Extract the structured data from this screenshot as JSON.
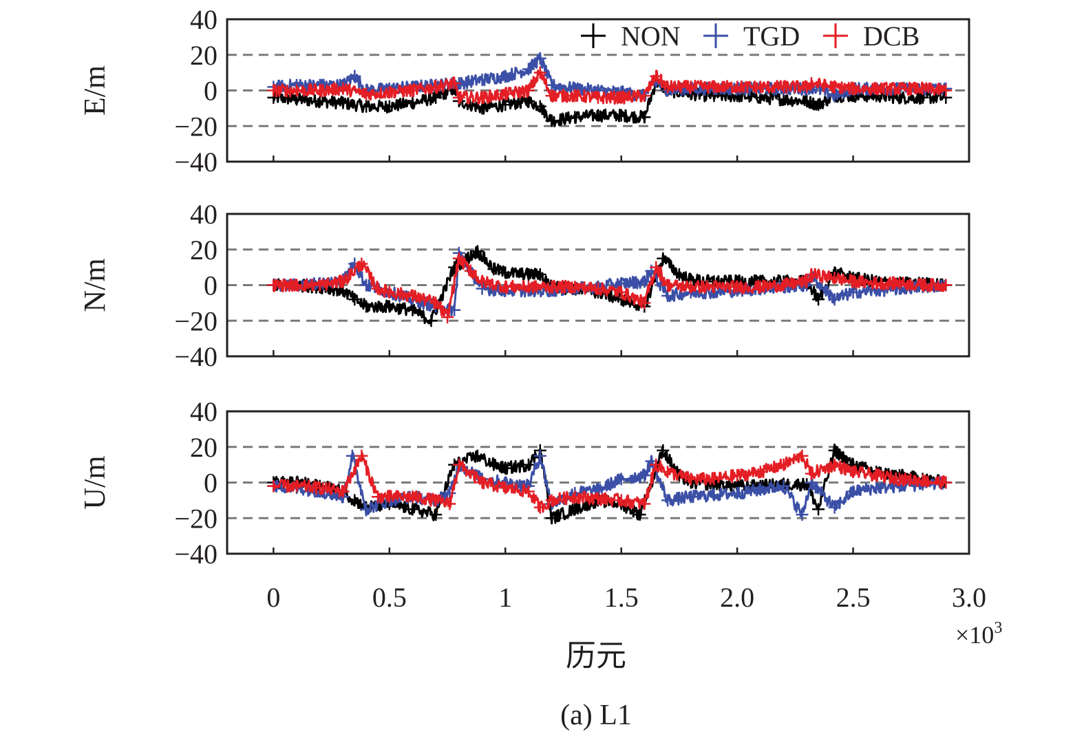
{
  "chart_data": {
    "type": "scatter",
    "caption": "(a) L1",
    "xlabel": "历元",
    "x_multiplier": "×10",
    "x_multiplier_exp": "3",
    "x_range": [
      -0.2,
      3.0
    ],
    "x_ticks": [
      {
        "value": 0,
        "label": "0"
      },
      {
        "value": 0.5,
        "label": "0.5"
      },
      {
        "value": 1,
        "label": "1"
      },
      {
        "value": 1.5,
        "label": "1.5"
      },
      {
        "value": 2.0,
        "label": "2.0"
      },
      {
        "value": 2.5,
        "label": "2.5"
      },
      {
        "value": 3.0,
        "label": "3.0"
      }
    ],
    "y_ticks": [
      {
        "value": 40,
        "label": "40"
      },
      {
        "value": 20,
        "label": "20"
      },
      {
        "value": 0,
        "label": "0"
      },
      {
        "value": -20,
        "label": "−20"
      },
      {
        "value": -40,
        "label": "−40"
      }
    ],
    "y_range": [
      -40,
      40
    ],
    "grid": "dashed at y = -20, 0, 20",
    "legend": {
      "placement": "top-right of first panel",
      "marker": "+"
    },
    "series_styles": [
      {
        "name": "NON",
        "color": "#000000"
      },
      {
        "name": "TGD",
        "color": "#3b4fa6"
      },
      {
        "name": "DCB",
        "color": "#e31e25"
      }
    ],
    "panels": [
      {
        "ylabel": "E/m",
        "series": [
          {
            "name": "NON",
            "x": [
              0,
              0.1,
              0.2,
              0.3,
              0.4,
              0.5,
              0.6,
              0.7,
              0.78,
              0.8,
              0.9,
              1.0,
              1.1,
              1.15,
              1.2,
              1.3,
              1.4,
              1.5,
              1.6,
              1.65,
              1.7,
              1.8,
              1.9,
              2.0,
              2.1,
              2.2,
              2.3,
              2.35,
              2.42,
              2.5,
              2.6,
              2.7,
              2.8,
              2.9
            ],
            "y": [
              -4,
              -5,
              -6,
              -7,
              -9,
              -9,
              -7,
              -4,
              1,
              -6,
              -10,
              -8,
              -6,
              -9,
              -17,
              -15,
              -14,
              -14,
              -15,
              5,
              0,
              -2,
              -3,
              -3,
              -4,
              -5,
              -6,
              -8,
              -3,
              -3,
              -3,
              -4,
              -4,
              -4
            ]
          },
          {
            "name": "TGD",
            "x": [
              0,
              0.1,
              0.2,
              0.3,
              0.35,
              0.4,
              0.5,
              0.6,
              0.7,
              0.78,
              0.8,
              0.9,
              1.0,
              1.1,
              1.15,
              1.2,
              1.3,
              1.4,
              1.5,
              1.6,
              1.65,
              1.7,
              1.8,
              1.9,
              2.0,
              2.1,
              2.2,
              2.3,
              2.32,
              2.42,
              2.5,
              2.6,
              2.7,
              2.8,
              2.9
            ],
            "y": [
              2,
              3,
              3,
              3,
              8,
              0,
              1,
              2,
              3,
              4,
              4,
              6,
              8,
              12,
              18,
              3,
              1,
              0,
              -1,
              -3,
              5,
              0,
              1,
              1,
              1,
              1,
              1,
              1,
              2,
              -3,
              1,
              1,
              1,
              1,
              1
            ]
          },
          {
            "name": "DCB",
            "x": [
              0,
              0.1,
              0.2,
              0.3,
              0.4,
              0.5,
              0.6,
              0.7,
              0.78,
              0.8,
              0.9,
              1.0,
              1.1,
              1.15,
              1.2,
              1.3,
              1.4,
              1.5,
              1.6,
              1.65,
              1.7,
              1.8,
              1.9,
              2.0,
              2.1,
              2.2,
              2.3,
              2.32,
              2.42,
              2.5,
              2.6,
              2.7,
              2.8,
              2.9
            ],
            "y": [
              0,
              0,
              0,
              1,
              -2,
              -1,
              0,
              2,
              4,
              -4,
              -4,
              -2,
              0,
              10,
              -3,
              -3,
              -4,
              -4,
              -3,
              8,
              2,
              2,
              2,
              2,
              2,
              2,
              2,
              4,
              2,
              1,
              1,
              1,
              1,
              0
            ]
          }
        ]
      },
      {
        "ylabel": "N/m",
        "series": [
          {
            "name": "NON",
            "x": [
              0,
              0.1,
              0.2,
              0.3,
              0.35,
              0.4,
              0.5,
              0.6,
              0.68,
              0.78,
              0.88,
              0.95,
              1.0,
              1.1,
              1.15,
              1.2,
              1.3,
              1.4,
              1.5,
              1.6,
              1.68,
              1.75,
              1.8,
              1.9,
              2.0,
              2.1,
              2.2,
              2.3,
              2.35,
              2.42,
              2.5,
              2.6,
              2.7,
              2.8,
              2.9
            ],
            "y": [
              0,
              0,
              -1,
              -3,
              -8,
              -12,
              -12,
              -14,
              -20,
              10,
              19,
              9,
              7,
              6,
              6,
              -1,
              -2,
              -4,
              -8,
              -12,
              15,
              6,
              3,
              2,
              2,
              2,
              2,
              2,
              -8,
              7,
              4,
              2,
              1,
              1,
              0
            ]
          },
          {
            "name": "TGD",
            "x": [
              0,
              0.1,
              0.2,
              0.3,
              0.35,
              0.4,
              0.5,
              0.6,
              0.7,
              0.78,
              0.8,
              0.9,
              1.0,
              1.1,
              1.2,
              1.3,
              1.4,
              1.5,
              1.6,
              1.63,
              1.7,
              1.8,
              1.9,
              2.0,
              2.1,
              2.2,
              2.3,
              2.32,
              2.42,
              2.5,
              2.6,
              2.7,
              2.8,
              2.9
            ],
            "y": [
              0,
              0,
              1,
              3,
              12,
              0,
              -4,
              -8,
              -12,
              -14,
              18,
              -2,
              -3,
              -3,
              -3,
              -2,
              -1,
              1,
              2,
              8,
              -6,
              -4,
              -4,
              -3,
              -2,
              -1,
              0,
              5,
              -8,
              -4,
              -3,
              -2,
              -1,
              0
            ]
          },
          {
            "name": "DCB",
            "x": [
              0,
              0.1,
              0.2,
              0.3,
              0.38,
              0.45,
              0.5,
              0.6,
              0.7,
              0.75,
              0.8,
              0.85,
              0.9,
              1.0,
              1.1,
              1.2,
              1.3,
              1.4,
              1.5,
              1.6,
              1.65,
              1.7,
              1.8,
              1.9,
              2.0,
              2.1,
              2.2,
              2.3,
              2.32,
              2.42,
              2.5,
              2.6,
              2.7,
              2.8,
              2.9
            ],
            "y": [
              0,
              0,
              0,
              2,
              12,
              -2,
              -4,
              -6,
              -10,
              -18,
              15,
              8,
              2,
              -1,
              -1,
              -1,
              -1,
              -2,
              -4,
              -10,
              10,
              0,
              -1,
              -1,
              -1,
              -1,
              0,
              2,
              6,
              4,
              2,
              1,
              1,
              0,
              0
            ]
          }
        ]
      },
      {
        "ylabel": "U/m",
        "series": [
          {
            "name": "NON",
            "x": [
              0,
              0.1,
              0.2,
              0.3,
              0.35,
              0.4,
              0.5,
              0.6,
              0.7,
              0.78,
              0.88,
              0.95,
              1.0,
              1.1,
              1.15,
              1.2,
              1.3,
              1.4,
              1.5,
              1.58,
              1.68,
              1.75,
              1.8,
              1.9,
              2.0,
              2.1,
              2.2,
              2.3,
              2.35,
              2.42,
              2.5,
              2.6,
              2.7,
              2.8,
              2.9
            ],
            "y": [
              0,
              0,
              -2,
              -5,
              -10,
              -14,
              -12,
              -15,
              -18,
              10,
              15,
              10,
              8,
              10,
              18,
              -20,
              -15,
              -10,
              -12,
              -18,
              18,
              4,
              0,
              -1,
              -2,
              -2,
              -1,
              -1,
              -15,
              18,
              10,
              6,
              4,
              2,
              0
            ]
          },
          {
            "name": "TGD",
            "x": [
              0,
              0.1,
              0.2,
              0.3,
              0.34,
              0.4,
              0.5,
              0.6,
              0.7,
              0.76,
              0.8,
              0.9,
              1.0,
              1.1,
              1.15,
              1.2,
              1.3,
              1.4,
              1.5,
              1.6,
              1.63,
              1.7,
              1.8,
              1.9,
              2.0,
              2.1,
              2.2,
              2.28,
              2.32,
              2.42,
              2.5,
              2.6,
              2.7,
              2.8,
              2.9
            ],
            "y": [
              -2,
              -3,
              -5,
              -8,
              15,
              -15,
              -10,
              -8,
              -10,
              -6,
              10,
              2,
              0,
              -2,
              15,
              -12,
              -6,
              -4,
              2,
              4,
              12,
              -10,
              -8,
              -7,
              -6,
              -4,
              -2,
              -18,
              0,
              -14,
              -5,
              -3,
              -2,
              -1,
              0
            ]
          },
          {
            "name": "DCB",
            "x": [
              0,
              0.1,
              0.2,
              0.3,
              0.38,
              0.45,
              0.5,
              0.6,
              0.7,
              0.76,
              0.8,
              0.9,
              1.0,
              1.1,
              1.15,
              1.2,
              1.3,
              1.4,
              1.5,
              1.6,
              1.65,
              1.7,
              1.8,
              1.9,
              2.0,
              2.1,
              2.2,
              2.28,
              2.32,
              2.42,
              2.5,
              2.6,
              2.7,
              2.8,
              2.9
            ],
            "y": [
              -2,
              -2,
              -3,
              -5,
              15,
              -8,
              -8,
              -8,
              -10,
              -12,
              10,
              0,
              -3,
              -5,
              -14,
              -10,
              -8,
              -9,
              -10,
              -12,
              10,
              6,
              2,
              2,
              4,
              6,
              10,
              15,
              5,
              10,
              6,
              4,
              2,
              1,
              0
            ]
          }
        ]
      }
    ]
  }
}
